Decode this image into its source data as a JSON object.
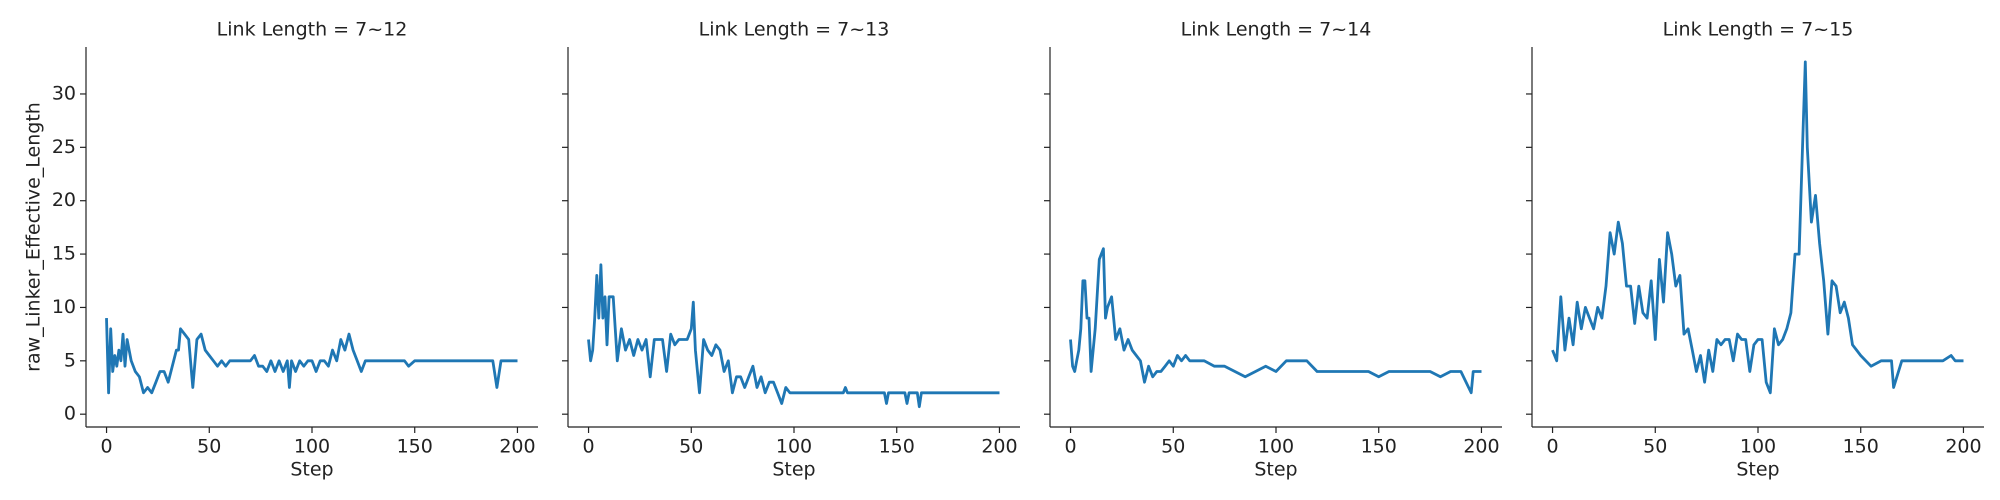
{
  "chart_data": [
    {
      "type": "line",
      "title": "Link Length = 7~12",
      "xlabel": "Step",
      "ylabel": "raw_Linker_Effective_Length",
      "color": "#1f77b4",
      "x": [
        0,
        1,
        2,
        3,
        4,
        5,
        6,
        7,
        8,
        9,
        10,
        12,
        14,
        16,
        18,
        20,
        22,
        24,
        26,
        28,
        30,
        32,
        34,
        35,
        36,
        38,
        40,
        42,
        44,
        46,
        48,
        50,
        52,
        54,
        56,
        58,
        60,
        65,
        70,
        72,
        74,
        76,
        78,
        80,
        82,
        84,
        86,
        88,
        89,
        90,
        92,
        94,
        96,
        98,
        100,
        102,
        104,
        106,
        108,
        110,
        112,
        114,
        116,
        118,
        120,
        122,
        124,
        126,
        128,
        130,
        140,
        145,
        147,
        150,
        160,
        170,
        180,
        188,
        190,
        192,
        200
      ],
      "values": [
        9,
        2,
        8,
        4,
        5.5,
        4.5,
        6,
        5,
        7.5,
        4.5,
        7,
        5,
        4,
        3.5,
        2,
        2.5,
        2,
        3,
        4,
        4,
        3,
        4.5,
        6,
        6,
        8,
        7.5,
        7,
        2.5,
        7,
        7.5,
        6,
        5.5,
        5,
        4.5,
        5,
        4.5,
        5,
        5,
        5,
        5.5,
        4.5,
        4.5,
        4,
        5,
        4,
        5,
        4,
        5,
        2.5,
        5,
        4,
        5,
        4.5,
        5,
        5,
        4,
        5,
        5,
        4.5,
        6,
        5,
        7,
        6,
        7.5,
        6,
        5,
        4,
        5,
        5,
        5,
        5,
        5,
        4.5,
        5,
        5,
        5,
        5,
        5,
        2.5,
        5,
        5
      ],
      "xlim": [
        -10,
        210
      ],
      "ylim": [
        -1.2,
        34.4
      ],
      "xticks": [
        0,
        50,
        100,
        150,
        200
      ],
      "yticks": [
        0,
        5,
        10,
        15,
        20,
        25,
        30
      ]
    },
    {
      "type": "line",
      "title": "Link Length = 7~13",
      "xlabel": "Step",
      "color": "#1f77b4",
      "x": [
        0,
        1,
        2,
        3,
        4,
        5,
        6,
        7,
        8,
        9,
        10,
        12,
        14,
        16,
        18,
        20,
        22,
        24,
        26,
        28,
        30,
        32,
        34,
        36,
        38,
        40,
        42,
        44,
        46,
        48,
        50,
        51,
        52,
        54,
        56,
        58,
        60,
        62,
        64,
        66,
        68,
        70,
        72,
        74,
        76,
        78,
        80,
        82,
        84,
        86,
        88,
        90,
        92,
        94,
        96,
        98,
        100,
        110,
        120,
        124,
        125,
        126,
        130,
        140,
        144,
        145,
        146,
        150,
        154,
        155,
        156,
        160,
        161,
        162,
        170,
        180,
        190,
        200
      ],
      "values": [
        7,
        5,
        6,
        9,
        13,
        9,
        14,
        9,
        11,
        6.5,
        11,
        11,
        5,
        8,
        6,
        7,
        5.5,
        7,
        6,
        7,
        3.5,
        7,
        7,
        7,
        4,
        7.5,
        6.5,
        7,
        7,
        7,
        8,
        10.5,
        6,
        2,
        7,
        6,
        5.5,
        6.5,
        6,
        4,
        5,
        2,
        3.5,
        3.5,
        2.5,
        3.5,
        4.5,
        2.5,
        3.5,
        2,
        3,
        3,
        2,
        1,
        2.5,
        2,
        2,
        2,
        2,
        2,
        2.5,
        2,
        2,
        2,
        2,
        1,
        2,
        2,
        2,
        1,
        2,
        2,
        0.7,
        2,
        2,
        2,
        2,
        2
      ],
      "xlim": [
        -10,
        210
      ],
      "ylim": [
        -1.2,
        34.4
      ],
      "xticks": [
        0,
        50,
        100,
        150,
        200
      ],
      "yticks": [
        0,
        5,
        10,
        15,
        20,
        25,
        30
      ]
    },
    {
      "type": "line",
      "title": "Link Length = 7~14",
      "xlabel": "Step",
      "color": "#1f77b4",
      "x": [
        0,
        1,
        2,
        3,
        4,
        5,
        6,
        7,
        8,
        9,
        10,
        12,
        14,
        16,
        17,
        18,
        20,
        22,
        24,
        26,
        28,
        30,
        32,
        34,
        36,
        38,
        40,
        42,
        44,
        46,
        48,
        50,
        52,
        54,
        56,
        58,
        60,
        65,
        70,
        75,
        80,
        85,
        90,
        95,
        100,
        105,
        110,
        115,
        120,
        125,
        130,
        135,
        140,
        145,
        150,
        155,
        160,
        165,
        170,
        175,
        180,
        185,
        190,
        195,
        196,
        197,
        200
      ],
      "values": [
        7,
        4.5,
        4,
        5,
        6,
        8,
        12.5,
        12.5,
        9,
        9,
        4,
        8,
        14.5,
        15.5,
        9,
        10,
        11,
        7,
        8,
        6,
        7,
        6,
        5.5,
        5,
        3,
        4.5,
        3.5,
        4,
        4,
        4.5,
        5,
        4.5,
        5.5,
        5,
        5.5,
        5,
        5,
        5,
        4.5,
        4.5,
        4,
        3.5,
        4,
        4.5,
        4,
        5,
        5,
        5,
        4,
        4,
        4,
        4,
        4,
        4,
        3.5,
        4,
        4,
        4,
        4,
        4,
        3.5,
        4,
        4,
        2,
        4,
        4,
        4
      ],
      "xlim": [
        -10,
        210
      ],
      "ylim": [
        -1.2,
        34.4
      ],
      "xticks": [
        0,
        50,
        100,
        150,
        200
      ],
      "yticks": [
        0,
        5,
        10,
        15,
        20,
        25,
        30
      ]
    },
    {
      "type": "line",
      "title": "Link Length = 7~15",
      "xlabel": "Step",
      "color": "#1f77b4",
      "x": [
        0,
        2,
        4,
        6,
        8,
        10,
        12,
        14,
        16,
        18,
        20,
        22,
        24,
        26,
        28,
        30,
        32,
        34,
        36,
        38,
        40,
        42,
        44,
        46,
        48,
        50,
        52,
        54,
        56,
        58,
        60,
        62,
        64,
        66,
        68,
        70,
        72,
        74,
        76,
        78,
        80,
        82,
        84,
        86,
        88,
        90,
        92,
        94,
        96,
        98,
        100,
        102,
        104,
        106,
        108,
        110,
        112,
        114,
        116,
        118,
        120,
        122,
        123,
        124,
        126,
        128,
        130,
        132,
        134,
        136,
        138,
        140,
        142,
        144,
        146,
        148,
        150,
        155,
        160,
        165,
        166,
        170,
        180,
        190,
        194,
        196,
        200
      ],
      "values": [
        6,
        5,
        11,
        6,
        9,
        6.5,
        10.5,
        8,
        10,
        9,
        8,
        10,
        9,
        12,
        17,
        15,
        18,
        16,
        12,
        12,
        8.5,
        12,
        9.5,
        9,
        12.5,
        7,
        14.5,
        10.5,
        17,
        15,
        12,
        13,
        7.5,
        8,
        6,
        4,
        5.5,
        3,
        6,
        4,
        7,
        6.5,
        7,
        7,
        5,
        7.5,
        7,
        7,
        4,
        6.5,
        7,
        7,
        3,
        2,
        8,
        6.5,
        7,
        8,
        9.5,
        15,
        15,
        27,
        33,
        25,
        18,
        20.5,
        16,
        12.5,
        7.5,
        12.5,
        12,
        9.5,
        10.5,
        9,
        6.5,
        6,
        5.5,
        4.5,
        5,
        5,
        2.5,
        5,
        5,
        5,
        5.5,
        5,
        5
      ],
      "xlim": [
        -10,
        210
      ],
      "ylim": [
        -1.2,
        34.4
      ],
      "xticks": [
        0,
        50,
        100,
        150,
        200
      ],
      "yticks": [
        0,
        5,
        10,
        15,
        20,
        25,
        30
      ]
    }
  ]
}
